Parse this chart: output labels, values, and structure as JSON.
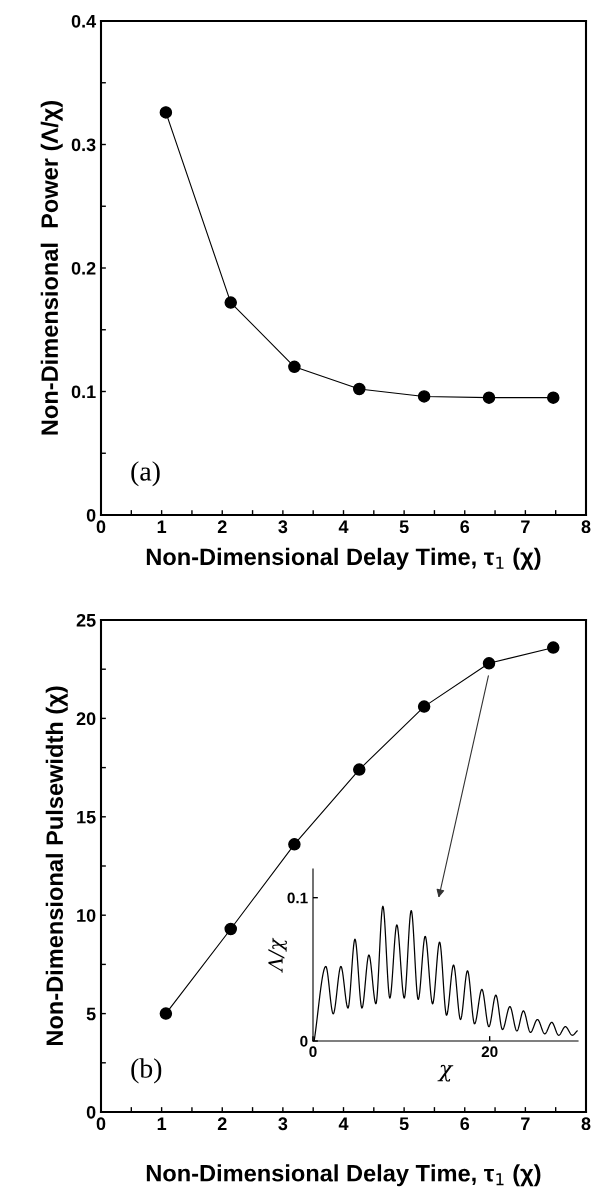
{
  "chart_data": [
    {
      "type": "line",
      "xlabel": "Non-Dimensional Delay Time, τ$_{1}$ (χ)",
      "ylabel": "Non-Dimensional  Power (Λ/χ)",
      "x": [
        1.07,
        2.14,
        3.19,
        4.26,
        5.33,
        6.4,
        7.46
      ],
      "series": [
        {
          "color": "#000000",
          "values": [
            0.326,
            0.172,
            0.12,
            0.102,
            0.096,
            0.095,
            0.095
          ]
        }
      ],
      "marker": "circle",
      "line_style": "solid",
      "grid": false,
      "xlim": [
        0,
        8
      ],
      "xticks": [
        0,
        {
          "value": 0.5,
          "label": null
        },
        1,
        {
          "value": 1.5,
          "label": null
        },
        2,
        {
          "value": 2.5,
          "label": null
        },
        3,
        {
          "value": 3.5,
          "label": null
        },
        4,
        {
          "value": 4.5,
          "label": null
        },
        5,
        {
          "value": 5.5,
          "label": null
        },
        6,
        {
          "value": 6.5,
          "label": null
        },
        7,
        {
          "value": 7.5,
          "label": null
        },
        8
      ],
      "ylim": [
        0,
        0.4
      ],
      "yticks": [
        0,
        {
          "value": 0.05,
          "label": null
        },
        0.1,
        {
          "value": 0.15,
          "label": null
        },
        0.2,
        {
          "value": 0.25,
          "label": null
        },
        0.3,
        {
          "value": 0.35,
          "label": null
        },
        0.4
      ],
      "annotations": [
        "(a)"
      ]
    },
    {
      "type": "line",
      "xlabel": "Non-Dimensional Delay Time, τ$_{1}$ (χ)",
      "ylabel": "Non-Dimensional Pulsewidth (χ)",
      "x": [
        1.07,
        2.14,
        3.19,
        4.26,
        5.33,
        6.4,
        7.46
      ],
      "series": [
        {
          "color": "#000000",
          "values": [
            5.0,
            9.3,
            13.6,
            17.4,
            20.6,
            22.8,
            23.6
          ]
        }
      ],
      "marker": "circle",
      "line_style": "solid",
      "grid": false,
      "xlim": [
        0,
        8
      ],
      "xticks": [
        0,
        {
          "value": 0.5,
          "label": null
        },
        1,
        {
          "value": 1.5,
          "label": null
        },
        2,
        {
          "value": 2.5,
          "label": null
        },
        3,
        {
          "value": 3.5,
          "label": null
        },
        4,
        {
          "value": 4.5,
          "label": null
        },
        5,
        {
          "value": 5.5,
          "label": null
        },
        6,
        {
          "value": 6.5,
          "label": null
        },
        7,
        {
          "value": 7.5,
          "label": null
        },
        8
      ],
      "ylim": [
        0,
        25
      ],
      "yticks": [
        0,
        {
          "value": 2.5,
          "label": null
        },
        5,
        {
          "value": 7.5,
          "label": null
        },
        10,
        {
          "value": 12.5,
          "label": null
        },
        15,
        {
          "value": 17.5,
          "label": null
        },
        20,
        {
          "value": 22.5,
          "label": null
        },
        25
      ],
      "annotations": [
        "(b)"
      ]
    },
    {
      "type": "line",
      "xlabel": "χ",
      "ylabel": "Λ/χ",
      "x": [
        0.13,
        1.45,
        2.29,
        3.16,
        3.96,
        4.75,
        5.54,
        6.33,
        7.12,
        7.91,
        8.7,
        9.49,
        10.33,
        11.12,
        11.91,
        12.7,
        13.54,
        14.33,
        15.12,
        15.91,
        16.7,
        17.49,
        18.29,
        19.12,
        19.91,
        20.7,
        21.45,
        22.29,
        23.08,
        23.82,
        24.62,
        25.41,
        26.24,
        27.03,
        27.82,
        28.57,
        29.36,
        29.9
      ],
      "series": [
        {
          "color": "#000000",
          "values": [
            0,
            0.052,
            0.019,
            0.052,
            0.023,
            0.071,
            0.023,
            0.06,
            0.026,
            0.094,
            0.03,
            0.081,
            0.03,
            0.091,
            0.029,
            0.073,
            0.026,
            0.069,
            0.018,
            0.053,
            0.015,
            0.049,
            0.012,
            0.036,
            0.01,
            0.032,
            0.008,
            0.024,
            0.007,
            0.021,
            0.006,
            0.015,
            0.005,
            0.013,
            0.004,
            0.01,
            0.004,
            0.007
          ]
        }
      ],
      "marker": "none",
      "line_style": "solid",
      "grid": false,
      "xlim": [
        0,
        30
      ],
      "xticks": [
        0,
        20
      ],
      "ylim": [
        0,
        0.12
      ],
      "yticks": [
        0,
        0.1
      ]
    }
  ]
}
